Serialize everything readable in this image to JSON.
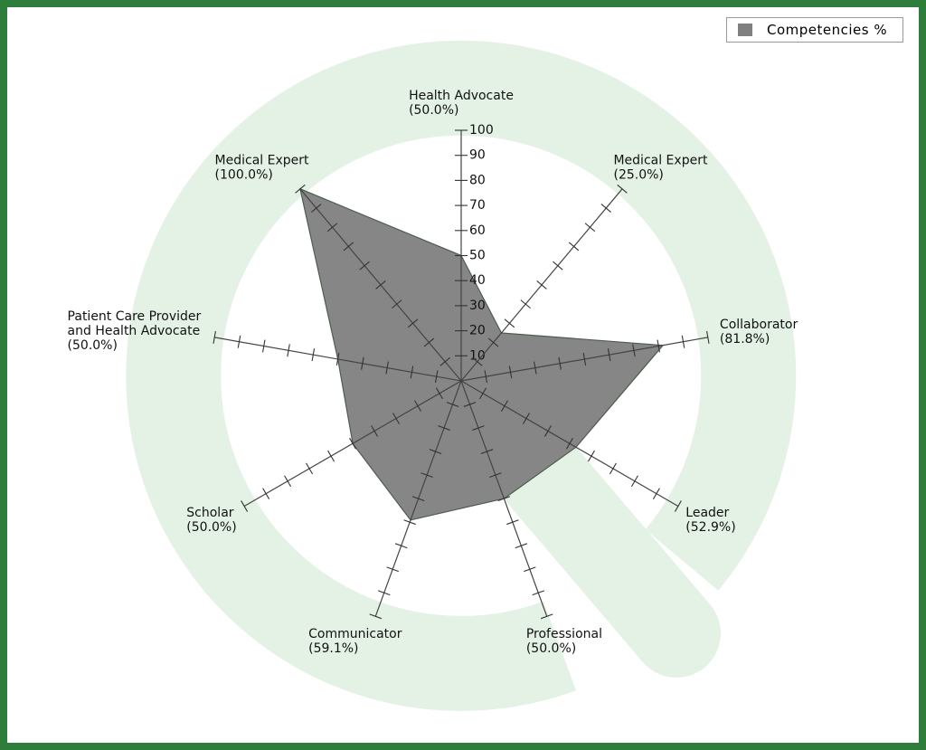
{
  "chart_data": {
    "type": "radar",
    "categories": [
      "Health Advocate",
      "Medical Expert",
      "Collaborator",
      "Leader",
      "Professional",
      "Communicator",
      "Scholar",
      "Patient Care Provider and Health Advocate",
      "Medical Expert"
    ],
    "series": [
      {
        "name": "Competencies %",
        "color": "#808080",
        "values": [
          50.0,
          25.0,
          81.8,
          52.9,
          50.0,
          59.1,
          50.0,
          50.0,
          100.0
        ],
        "value_labels": [
          "(50.0%)",
          "(25.0%)",
          "(81.8%)",
          "(52.9%)",
          "(50.0%)",
          "(59.1%)",
          "(50.0%)",
          "(50.0%)",
          "(100.0%)"
        ]
      }
    ],
    "rlim": [
      0,
      100
    ],
    "rticks": [
      10,
      20,
      30,
      40,
      50,
      60,
      70,
      80,
      90,
      100
    ],
    "legend": "top-right"
  }
}
